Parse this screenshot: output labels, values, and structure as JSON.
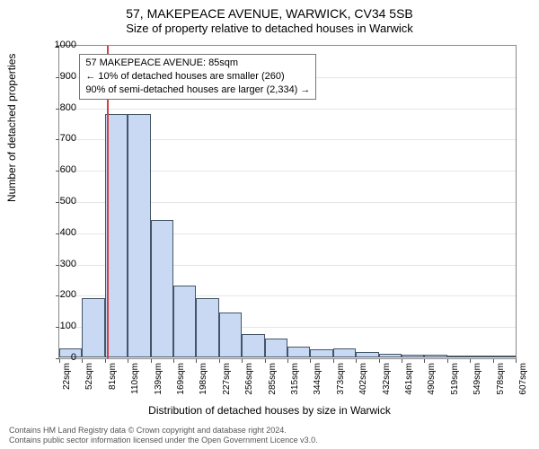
{
  "header": {
    "title": "57, MAKEPEACE AVENUE, WARWICK, CV34 5SB",
    "subtitle": "Size of property relative to detached houses in Warwick"
  },
  "chart": {
    "type": "histogram",
    "ylabel": "Number of detached properties",
    "xlabel": "Distribution of detached houses by size in Warwick",
    "ylim": [
      0,
      1000
    ],
    "ytick_step": 100,
    "xticks": [
      "22sqm",
      "52sqm",
      "81sqm",
      "110sqm",
      "139sqm",
      "169sqm",
      "198sqm",
      "227sqm",
      "256sqm",
      "285sqm",
      "315sqm",
      "344sqm",
      "373sqm",
      "402sqm",
      "432sqm",
      "461sqm",
      "490sqm",
      "519sqm",
      "549sqm",
      "578sqm",
      "607sqm"
    ],
    "bar_values": [
      30,
      190,
      780,
      780,
      440,
      230,
      190,
      145,
      75,
      60,
      35,
      25,
      28,
      18,
      12,
      10,
      8,
      5,
      5,
      3
    ],
    "bar_color": "#c9d9f4",
    "bar_border": "#445566",
    "bar_width_ratio": 1.0,
    "grid_color": "#e6e6e6",
    "border_color": "#888888",
    "background_color": "#ffffff",
    "ref_line_x_index": 2.1,
    "ref_line_color": "#d44141"
  },
  "infobox": {
    "line1": "57 MAKEPEACE AVENUE: 85sqm",
    "line2": "← 10% of detached houses are smaller (260)",
    "line3": "90% of semi-detached houses are larger (2,334) →"
  },
  "footer": {
    "line1": "Contains HM Land Registry data © Crown copyright and database right 2024.",
    "line2": "Contains public sector information licensed under the Open Government Licence v3.0."
  }
}
